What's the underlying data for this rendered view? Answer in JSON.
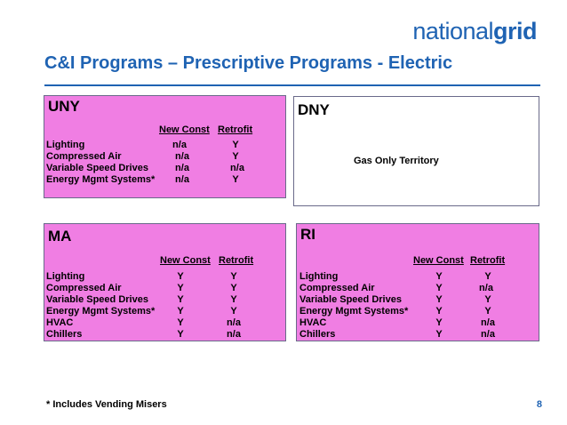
{
  "logo": {
    "light": "national",
    "bold": "grid"
  },
  "slide": {
    "title": "C&I Programs – Prescriptive Programs - Electric",
    "footnote": "* Includes Vending Misers",
    "page_number": "8"
  },
  "panels": {
    "uny": {
      "title": "UNY",
      "col1": "New Const",
      "col2": "Retrofit",
      "rows": [
        {
          "label": "Lighting",
          "new_const": "n/a",
          "retrofit": "Y"
        },
        {
          "label": "Compressed Air",
          "new_const": "n/a",
          "retrofit": "Y"
        },
        {
          "label": "Variable Speed Drives",
          "new_const": "n/a",
          "retrofit": "n/a"
        },
        {
          "label": "Energy Mgmt Systems*",
          "new_const": "n/a",
          "retrofit": "Y"
        }
      ]
    },
    "dny": {
      "title": "DNY",
      "note": "Gas Only Territory"
    },
    "ma": {
      "title": "MA",
      "col1": "New Const",
      "col2": "Retrofit",
      "rows": [
        {
          "label": "Lighting",
          "new_const": "Y",
          "retrofit": "Y"
        },
        {
          "label": "Compressed Air",
          "new_const": "Y",
          "retrofit": "Y"
        },
        {
          "label": "Variable Speed Drives",
          "new_const": "Y",
          "retrofit": "Y"
        },
        {
          "label": "Energy Mgmt Systems*",
          "new_const": "Y",
          "retrofit": "Y"
        },
        {
          "label": "HVAC",
          "new_const": "Y",
          "retrofit": "n/a"
        },
        {
          "label": "Chillers",
          "new_const": "Y",
          "retrofit": "n/a"
        }
      ]
    },
    "ri": {
      "title": "RI",
      "col1": "New Const",
      "col2": "Retrofit",
      "rows": [
        {
          "label": "Lighting",
          "new_const": "Y",
          "retrofit": "Y"
        },
        {
          "label": "Compressed Air",
          "new_const": "Y",
          "retrofit": "n/a"
        },
        {
          "label": "Variable Speed Drives",
          "new_const": "Y",
          "retrofit": "Y"
        },
        {
          "label": "Energy Mgmt Systems*",
          "new_const": "Y",
          "retrofit": "Y"
        },
        {
          "label": "HVAC",
          "new_const": "Y",
          "retrofit": "n/a"
        },
        {
          "label": "Chillers",
          "new_const": "Y",
          "retrofit": "n/a"
        }
      ]
    }
  },
  "colors": {
    "brand_blue": "#1f63b3",
    "panel_pink": "#f07ee3"
  }
}
